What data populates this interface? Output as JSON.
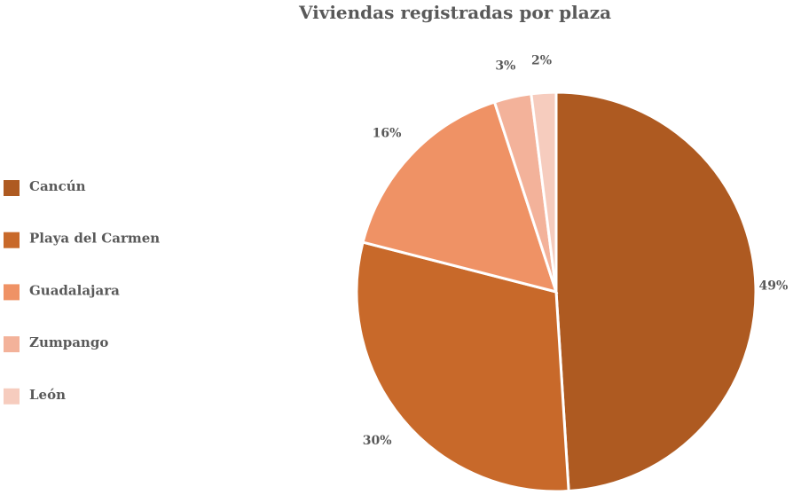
{
  "chart_data": {
    "type": "pie",
    "title": "Viviendas registradas por plaza",
    "categories": [
      "Cancún",
      "Playa del Carmen",
      "Guadalajara",
      "Zumpango",
      "León"
    ],
    "values": [
      49,
      30,
      16,
      3,
      2
    ],
    "data_labels": [
      "49%",
      "30%",
      "16%",
      "3%",
      "2%"
    ],
    "colors": [
      "#AE5A21",
      "#C8692A",
      "#EF9265",
      "#F3B29A",
      "#F6CCBE"
    ],
    "legend_placement": "left",
    "start_angle": "top, clockwise"
  }
}
